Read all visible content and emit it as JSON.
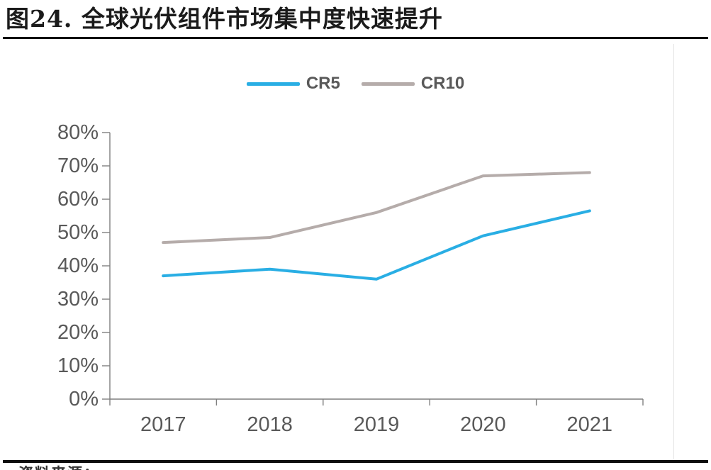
{
  "figure": {
    "title": "图24. 全球光伏组件市场集中度快速提升",
    "source_note_partial": "资料来源："
  },
  "chart_data": {
    "type": "line",
    "title": "图24. 全球光伏组件市场集中度快速提升",
    "categories": [
      "2017",
      "2018",
      "2019",
      "2020",
      "2021"
    ],
    "series": [
      {
        "name": "CR5",
        "color": "#29AEE4",
        "values": [
          37,
          39,
          36,
          49,
          56.5
        ]
      },
      {
        "name": "CR10",
        "color": "#B5ACAA",
        "values": [
          47,
          48.5,
          56,
          67,
          68
        ]
      }
    ],
    "xlabel": "",
    "ylabel": "",
    "ylim": [
      0,
      80
    ],
    "ytick_step": 10,
    "ytick_labels": [
      "0%",
      "10%",
      "20%",
      "30%",
      "40%",
      "50%",
      "60%",
      "70%",
      "80%"
    ],
    "legend_position": "top-center",
    "grid": false,
    "axis_color": "#7f7f7f",
    "text_color": "#595959",
    "line_width": 4
  }
}
